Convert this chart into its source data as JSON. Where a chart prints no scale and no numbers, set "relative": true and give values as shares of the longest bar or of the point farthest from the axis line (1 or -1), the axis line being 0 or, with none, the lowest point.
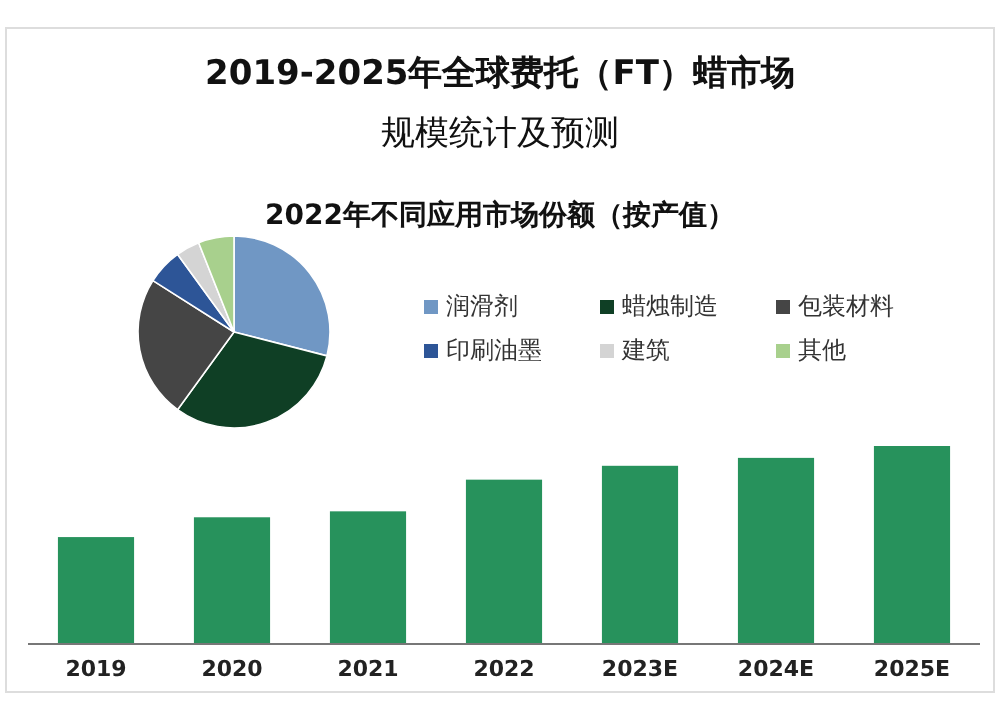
{
  "chart_data": [
    {
      "type": "bar",
      "title": "2019-2025年全球费托（FT）蜡市场规模统计及预测",
      "relative": true,
      "categories": [
        "2019",
        "2020",
        "2021",
        "2022",
        "2023E",
        "2024E",
        "2025E"
      ],
      "values": [
        0.54,
        0.64,
        0.67,
        0.83,
        0.9,
        0.94,
        1
      ],
      "color": "#27925c"
    },
    {
      "type": "pie",
      "title": "2022年不同应用市场份额（按产值）",
      "legend": "right",
      "categories": [
        "润滑剂",
        "蜡烛制造",
        "包装材料",
        "印刷油墨",
        "建筑",
        "其他"
      ],
      "values": [
        29,
        31,
        24,
        6,
        4,
        6
      ],
      "colors": [
        "#7097c4",
        "#0f3f25",
        "#454545",
        "#2d5597",
        "#d4d4d4",
        "#a8d08d"
      ]
    }
  ]
}
